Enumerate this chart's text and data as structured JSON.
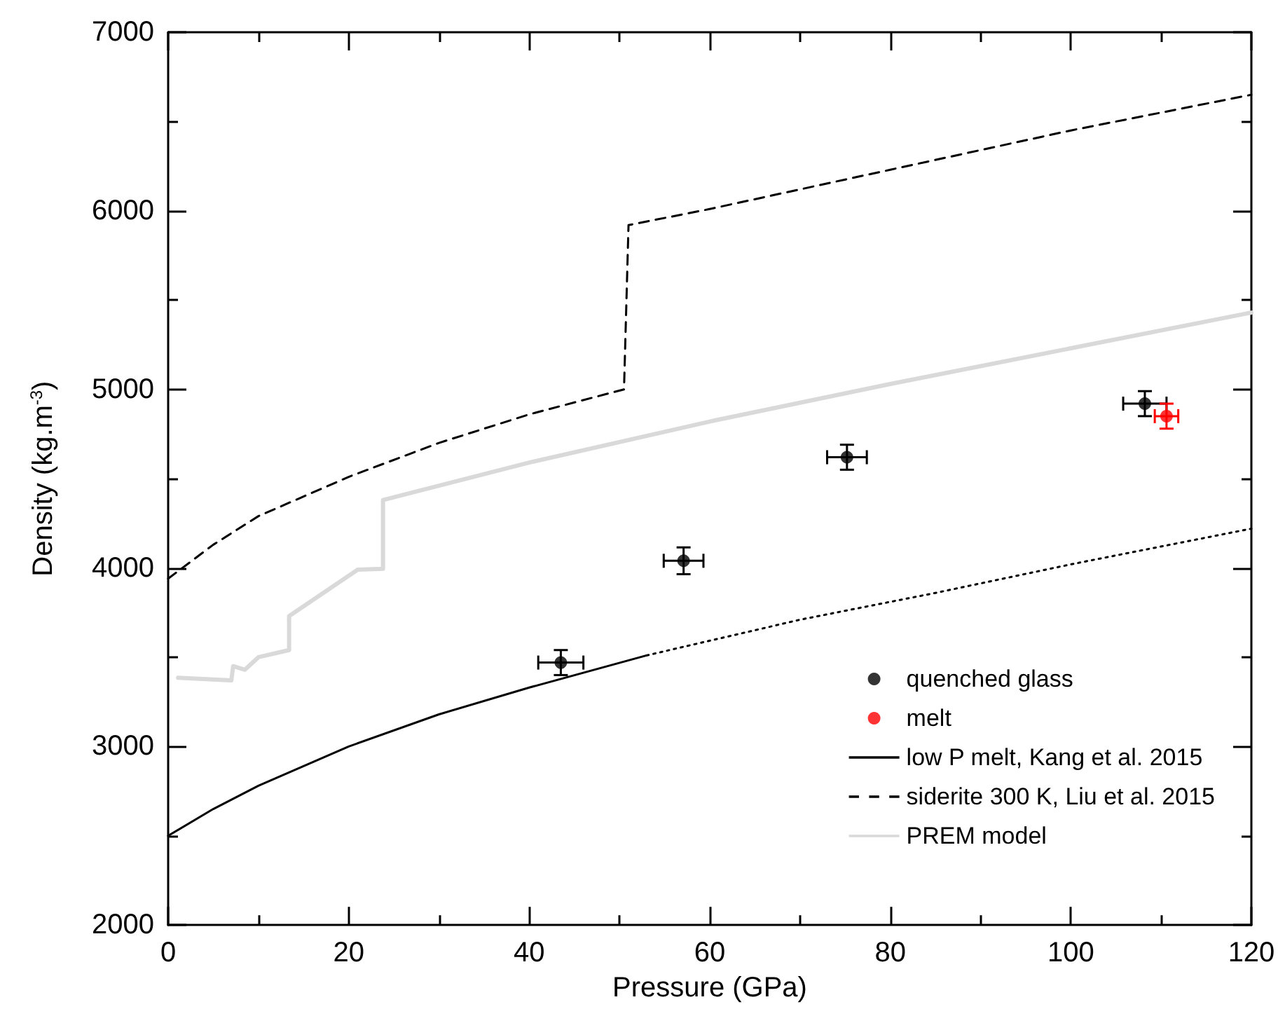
{
  "chart_data": {
    "type": "scatter",
    "xlabel": "Pressure (GPa)",
    "ylabel": "Density (kg.m$^{-3}$)",
    "xlim": [
      0,
      120
    ],
    "xticks": [
      0,
      20,
      40,
      60,
      80,
      100,
      120
    ],
    "ylim": [
      2000,
      7000
    ],
    "yticks": [
      2000,
      3000,
      4000,
      5000,
      6000,
      7000
    ],
    "grid": false,
    "legend": "bottom right",
    "series": [
      {
        "name": "quenched glass",
        "color": "#000000",
        "marker": "circle",
        "x": [
          43.5,
          57.1,
          75.2,
          108.2
        ],
        "values": [
          3470,
          4040,
          4620,
          4920
        ],
        "errors": [
          70,
          75,
          70,
          70
        ],
        "xerrors": [
          2.5,
          2.2,
          2.2,
          2.4
        ]
      },
      {
        "name": "melt",
        "color": "#ff0000",
        "marker": "circle",
        "x": [
          110.6
        ],
        "values": [
          4850
        ],
        "errors": [
          70
        ],
        "xerrors": [
          1.3
        ]
      },
      {
        "name": "low P melt, Kang et al. 2015",
        "type": "line",
        "color": "#000000",
        "line_style": "solid",
        "marker": "none",
        "x": [
          0,
          5,
          10,
          20,
          30,
          40,
          53
        ],
        "values": [
          2500,
          2650,
          2780,
          3000,
          3180,
          3330,
          3510
        ]
      },
      {
        "type": "line",
        "color": "#000000",
        "line_style": "dotted",
        "marker": "none",
        "x": [
          53,
          70,
          85,
          100,
          120
        ],
        "values": [
          3510,
          3710,
          3860,
          4020,
          4220
        ]
      },
      {
        "name": "siderite 300 K, Liu et al. 2015",
        "type": "line",
        "color": "#000000",
        "line_style": "dashed",
        "marker": "none",
        "x": [
          0,
          5,
          10,
          20,
          30,
          40,
          50.5,
          51,
          60,
          80,
          100,
          120
        ],
        "values": [
          3940,
          4130,
          4290,
          4510,
          4700,
          4860,
          5000,
          5920,
          6010,
          6230,
          6450,
          6650
        ]
      },
      {
        "name": "PREM model",
        "type": "line",
        "color": "#d9d9d9",
        "line_style": "solid",
        "marker": "none",
        "x": [
          1.1,
          7,
          7.2,
          8.5,
          10,
          13.4,
          13.4,
          21,
          23.8,
          23.8,
          40,
          60,
          80,
          100,
          120
        ],
        "values": [
          3385,
          3370,
          3450,
          3430,
          3500,
          3540,
          3730,
          3990,
          3995,
          4380,
          4590,
          4820,
          5030,
          5230,
          5430
        ]
      }
    ]
  }
}
